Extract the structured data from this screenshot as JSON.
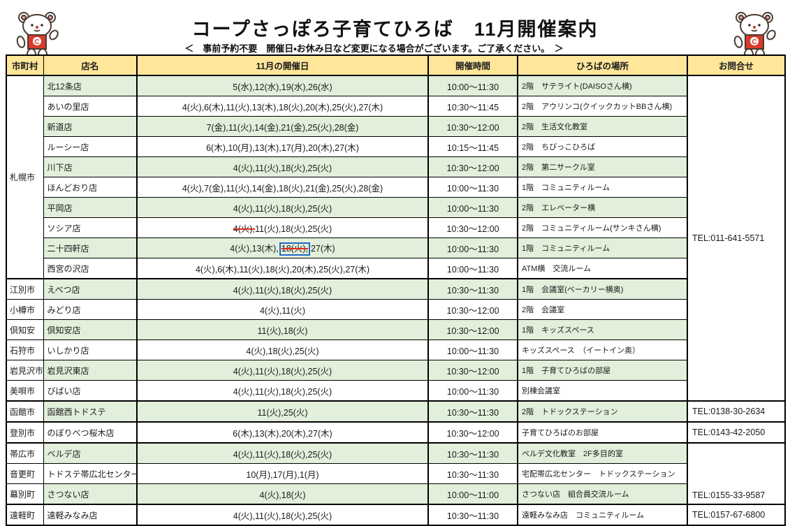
{
  "title": "コープさっぽろ子育てひろば　11月開催案内",
  "subtitle": "＜　事前予約不要　開催日・お休み日など変更になる場合がございます。ご了承ください。　＞",
  "columns": [
    "市町村",
    "店名",
    "11月の開催日",
    "開催時間",
    "ひろばの場所",
    "お問合せ"
  ],
  "colors": {
    "header_bg": "#FFE699",
    "row_green": "#E2EFDA",
    "strike_red": "#E0291F",
    "annotation_blue": "#2468C8",
    "mascot_red": "#D93B2B"
  },
  "rows": [
    {
      "city": "札幌市",
      "city_span": 10,
      "store": "北12条店",
      "dates": [
        {
          "text": "5(水),12(水),19(水),26(水)"
        }
      ],
      "time": "10:00～11:30",
      "place": "2階　サテライト(DAISOさん横)",
      "contact": {
        "text": "TEL:011-641-5571",
        "span": 16,
        "valign": "middle"
      }
    },
    {
      "store": "あいの里店",
      "dates": [
        {
          "text": "4(火),6(木),11(火),13(木),18(火),20(木),25(火),27(木)"
        }
      ],
      "time": "10:30～11:45",
      "place": "2階　アウリンコ(クイックカットBBさん横)"
    },
    {
      "store": "新道店",
      "dates": [
        {
          "text": "7(金),11(火),14(金),21(金),25(火),28(金)"
        }
      ],
      "time": "10:30～12:00",
      "place": "2階　生活文化教室"
    },
    {
      "store": "ルーシー店",
      "dates": [
        {
          "text": "6(木),10(月),13(木),17(月),20(木),27(木)"
        }
      ],
      "time": "10:15～11:45",
      "place": "2階　ちびっこひろば"
    },
    {
      "store": "川下店",
      "dates": [
        {
          "text": "4(火),11(火),18(火),25(火)"
        }
      ],
      "time": "10:30～12:00",
      "place": "2階　第二サークル室"
    },
    {
      "store": "ほんどおり店",
      "dates": [
        {
          "text": "4(火),7(金),11(火),14(金),18(火),21(金),25(火),28(金)"
        }
      ],
      "time": "10:00～11:30",
      "place": "1階　コミュニティルーム"
    },
    {
      "store": "平岡店",
      "dates": [
        {
          "text": "4(火),11(火),18(火),25(火)"
        }
      ],
      "time": "10:00～11:30",
      "place": "2階　エレベーター横"
    },
    {
      "store": "ソシア店",
      "dates": [
        {
          "text": "4(火),",
          "struck": true
        },
        {
          "text": "11(火),18(火),25(火)"
        }
      ],
      "time": "10:30～12:00",
      "place": "2階　コミュニティルーム(サンキさん横)"
    },
    {
      "store": "二十四軒店",
      "dates": [
        {
          "text": "4(火),13(木),"
        },
        {
          "text": "18(火),",
          "struck": true,
          "boxed": true
        },
        {
          "text": "27(木)"
        }
      ],
      "time": "10:00～11:30",
      "place": "1階　コミュニティルーム"
    },
    {
      "store": "西宮の沢店",
      "dates": [
        {
          "text": "4(火),6(木),11(火),18(火),20(木),25(火),27(木)"
        }
      ],
      "time": "10:00～11:30",
      "place": "ATM横　交流ルーム",
      "group_end": true
    },
    {
      "city": "江別市",
      "store": "えべつ店",
      "dates": [
        {
          "text": "4(火),11(火),18(火),25(火)"
        }
      ],
      "time": "10:30～11:30",
      "place": "1階　会議室(ベーカリー横奥)"
    },
    {
      "city": "小樽市",
      "store": "みどり店",
      "dates": [
        {
          "text": "4(火),11(火)"
        }
      ],
      "time": "10:30～12:00",
      "place": "2階　会議室"
    },
    {
      "city": "倶知安",
      "store": "倶知安店",
      "dates": [
        {
          "text": "11(火),18(火)"
        }
      ],
      "time": "10:30～12:00",
      "place": "1階　キッズスペース"
    },
    {
      "city": "石狩市",
      "store": "いしかり店",
      "dates": [
        {
          "text": "4(火),18(火),25(火)"
        }
      ],
      "time": "10:00～11:30",
      "place": "キッズスペース　（イートイン奥）"
    },
    {
      "city": "岩見沢市",
      "store": "岩見沢東店",
      "dates": [
        {
          "text": "4(火),11(火),18(火),25(火)"
        }
      ],
      "time": "10:30～12:00",
      "place": "1階　子育てひろばの部屋"
    },
    {
      "city": "美唄市",
      "store": "びばい店",
      "dates": [
        {
          "text": "4(火),11(火),18(火),25(火)"
        }
      ],
      "time": "10:00～11:30",
      "place": "別棟会議室",
      "group_end": true
    },
    {
      "city": "函館市",
      "store": "函館西トドステ",
      "dates": [
        {
          "text": "11(火),25(火)"
        }
      ],
      "time": "10:30～11:30",
      "place": "2階　トドックステーション",
      "contact": {
        "text": "TEL:0138-30-2634",
        "span": 1
      },
      "group_end": true
    },
    {
      "city": "登別市",
      "store": "のぼりべつ桜木店",
      "dates": [
        {
          "text": "6(木),13(木),20(木),27(木)"
        }
      ],
      "time": "10:30～12:00",
      "place": "子育てひろばのお部屋",
      "contact": {
        "text": "TEL:0143-42-2050",
        "span": 1
      },
      "group_end": true
    },
    {
      "city": "帯広市",
      "store": "ベルデ店",
      "dates": [
        {
          "text": "4(火),11(火),18(火),25(火)"
        }
      ],
      "time": "10:30～11:30",
      "place": "ベルデ文化教室　2F多目的室",
      "contact": {
        "text": "TEL:0155-33-9587",
        "span": 3,
        "valign": "bottom"
      }
    },
    {
      "city": "音更町",
      "store": "トドステ帯広北センター",
      "dates": [
        {
          "text": "10(月),17(月),1(月)"
        }
      ],
      "time": "10:30～11:30",
      "place": "宅配帯広北センター　トドックステーション"
    },
    {
      "city": "幕別町",
      "store": "さつない店",
      "dates": [
        {
          "text": "4(火),18(火)"
        }
      ],
      "time": "10:00～11:00",
      "place": "さつない店　組合員交流ルーム",
      "group_end": true
    },
    {
      "city": "遠軽町",
      "store": "遠軽みなみ店",
      "dates": [
        {
          "text": "4(火),11(火),18(火),25(火)"
        }
      ],
      "time": "10:30～11:30",
      "place": "遠軽みなみ店　コミュニティルーム",
      "contact": {
        "text": "TEL:0157-67-6800",
        "span": 1
      }
    }
  ]
}
